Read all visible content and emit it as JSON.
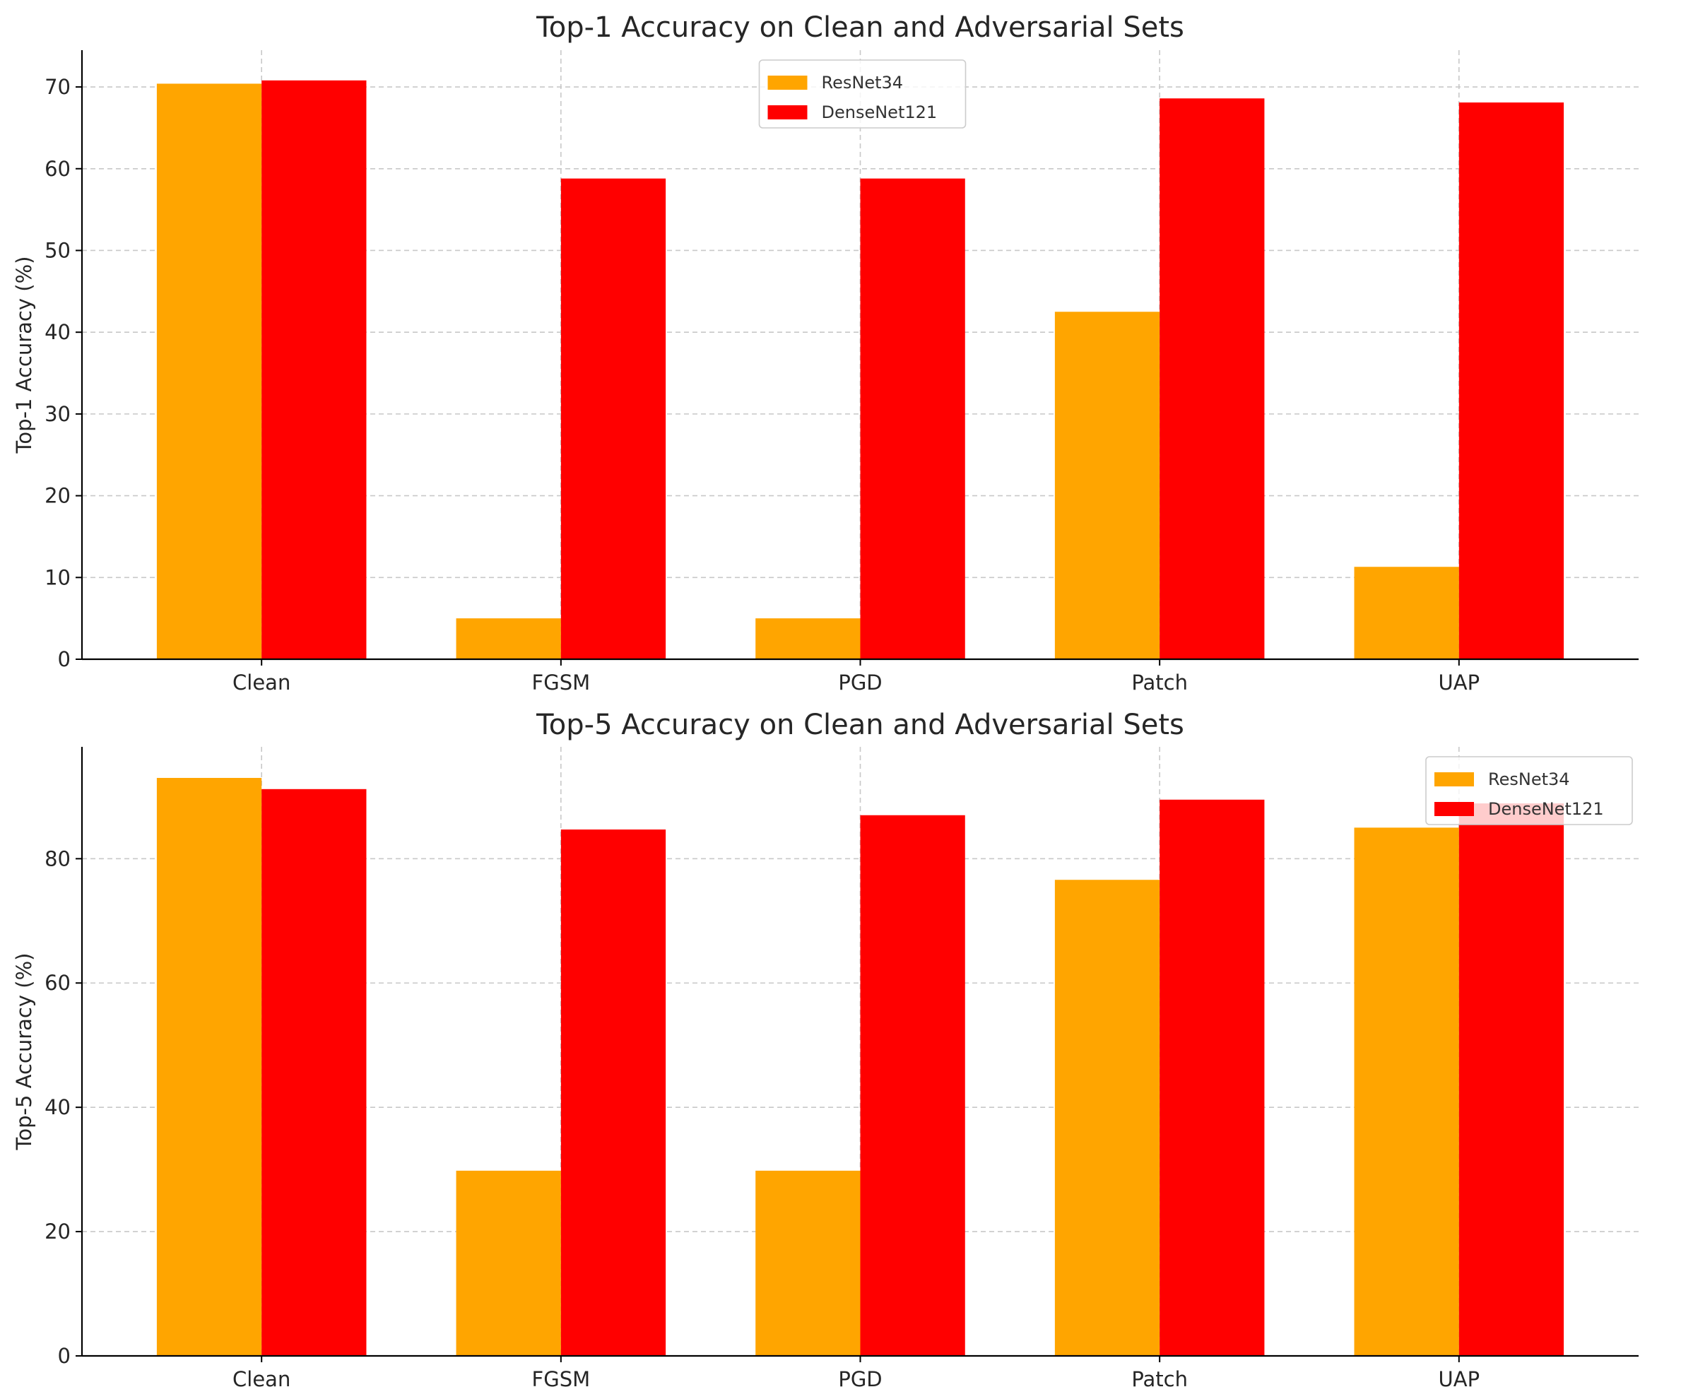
{
  "colors": {
    "ResNet34": "#FFA500",
    "DenseNet121": "#FF0000"
  },
  "chart_data": [
    {
      "type": "bar",
      "title": "Top-1 Accuracy on Clean and Adversarial Sets",
      "xlabel": "",
      "ylabel": "Top-1 Accuracy (%)",
      "categories": [
        "Clean",
        "FGSM",
        "PGD",
        "Patch",
        "UAP"
      ],
      "series": [
        {
          "name": "ResNet34",
          "values": [
            70.4,
            5.0,
            5.0,
            42.5,
            11.3
          ]
        },
        {
          "name": "DenseNet121",
          "values": [
            70.8,
            58.8,
            58.8,
            68.6,
            68.1
          ]
        }
      ],
      "ylim": [
        0,
        74.5
      ],
      "yticks": [
        0,
        10,
        20,
        30,
        40,
        50,
        60,
        70
      ],
      "grid": true,
      "legend": "upper center"
    },
    {
      "type": "bar",
      "title": "Top-5 Accuracy on Clean and Adversarial Sets",
      "xlabel": "",
      "ylabel": "Top-5 Accuracy (%)",
      "categories": [
        "Clean",
        "FGSM",
        "PGD",
        "Patch",
        "UAP"
      ],
      "series": [
        {
          "name": "ResNet34",
          "values": [
            93.0,
            29.8,
            29.8,
            76.6,
            85.0
          ]
        },
        {
          "name": "DenseNet121",
          "values": [
            91.2,
            84.7,
            87.0,
            89.5,
            88.9
          ]
        }
      ],
      "ylim": [
        0,
        98
      ],
      "yticks": [
        0,
        20,
        40,
        60,
        80
      ],
      "grid": true,
      "legend": "upper right"
    }
  ]
}
